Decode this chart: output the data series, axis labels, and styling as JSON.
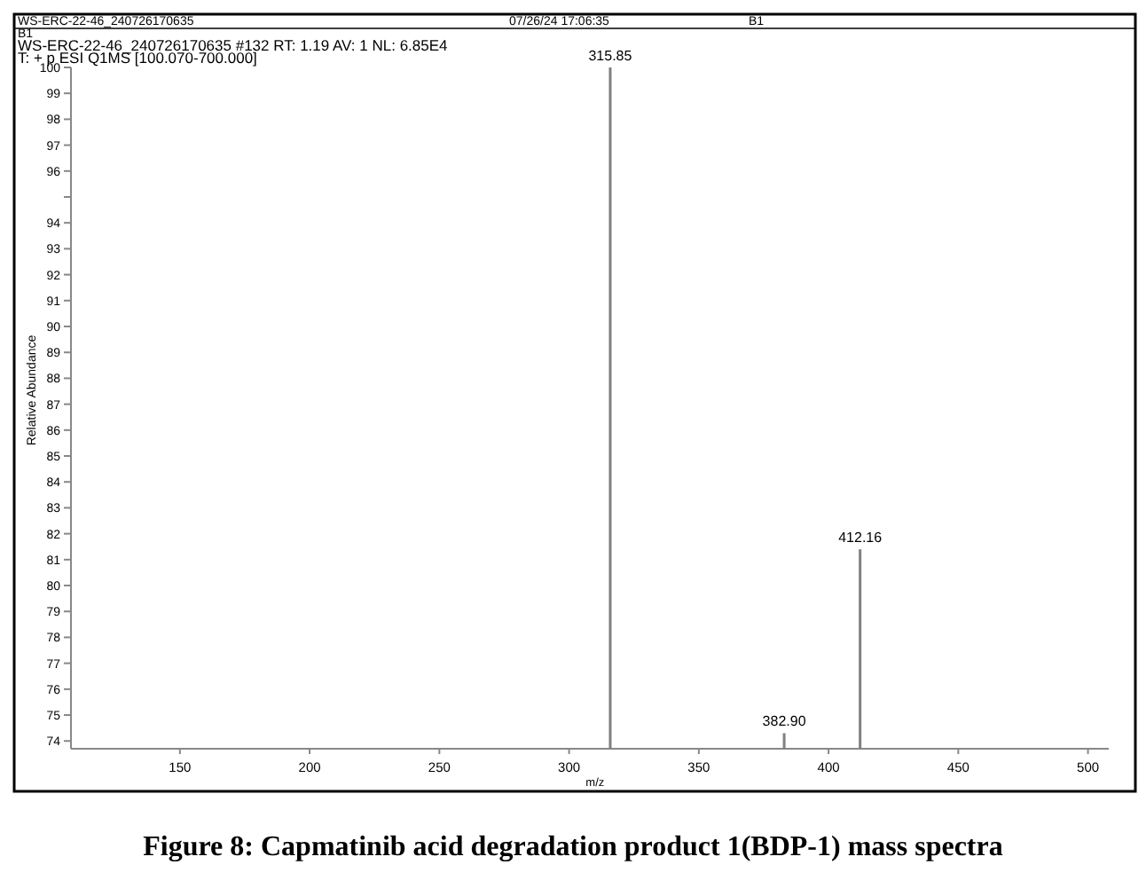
{
  "chart_data": {
    "type": "bar",
    "title": "Figure 8: Capmatinib acid degradation product 1(BDP-1) mass spectra",
    "xlabel": "m/z",
    "ylabel": "Relative Abundance",
    "annotations": [
      "WS-ERC-22-46_240726170635",
      "07/26/24 17:06:35",
      "B1",
      "B1",
      "WS-ERC-22-46_240726170635 #132  RT: 1.19  AV: 1  NL: 6.85E4",
      "T: + p ESI Q1MS [100.070-700.000]",
      {
        "text": "315.85",
        "x": 315.85,
        "y": 100
      },
      {
        "text": "382.90",
        "x": 382.9,
        "y": 74.3
      },
      {
        "text": "412.16",
        "x": 412.16,
        "y": 81.4
      }
    ],
    "x": [
      315.85,
      382.9,
      412.16
    ],
    "values": [
      100,
      74.3,
      81.4
    ],
    "color": "#808080",
    "xlim": [
      108,
      508
    ],
    "xticks": [
      150,
      200,
      250,
      300,
      350,
      400,
      450,
      500
    ],
    "ylim": [
      73.7,
      100
    ],
    "yticks": [
      74,
      75,
      76,
      77,
      78,
      79,
      80,
      81,
      82,
      83,
      84,
      85,
      86,
      87,
      88,
      89,
      90,
      91,
      92,
      93,
      94,
      {
        "value": 95,
        "label": null
      },
      96,
      97,
      98,
      99,
      100
    ],
    "grid": false
  }
}
